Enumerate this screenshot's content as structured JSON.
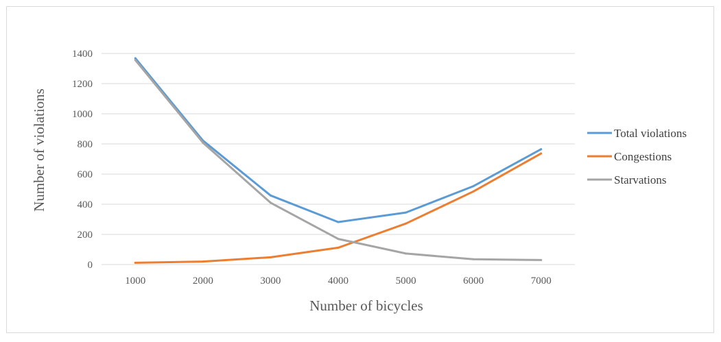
{
  "chart_data": {
    "type": "line",
    "title": "",
    "xlabel": "Number of bicycles",
    "ylabel": "Number of violations",
    "x": [
      1000,
      2000,
      3000,
      4000,
      5000,
      6000,
      7000
    ],
    "x_tick_labels": [
      "1000",
      "2000",
      "3000",
      "4000",
      "5000",
      "6000",
      "7000"
    ],
    "ylim": [
      0,
      1400
    ],
    "y_ticks": [
      0,
      200,
      400,
      600,
      800,
      1000,
      1200,
      1400
    ],
    "y_tick_labels": [
      "0",
      "200",
      "400",
      "600",
      "800",
      "1000",
      "1200",
      "1400"
    ],
    "grid": true,
    "legend_position": "right",
    "series": [
      {
        "name": "Total violations",
        "color": "#5b9bd5",
        "values": [
          1368,
          822,
          458,
          282,
          345,
          520,
          765
        ]
      },
      {
        "name": "Congestions",
        "color": "#ed7d31",
        "values": [
          12,
          20,
          48,
          112,
          272,
          485,
          737
        ]
      },
      {
        "name": "Starvations",
        "color": "#a5a5a5",
        "values": [
          1356,
          808,
          410,
          170,
          73,
          35,
          30
        ]
      }
    ]
  }
}
